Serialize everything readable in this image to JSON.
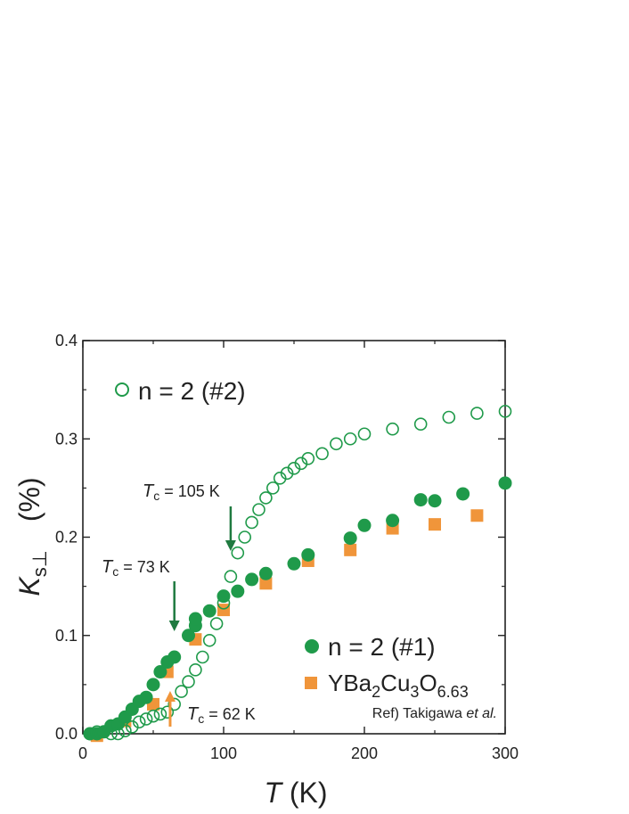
{
  "chart_data": {
    "type": "scatter",
    "xlabel": {
      "italic": "T",
      "unit": " (K)"
    },
    "ylabel": {
      "italic": "K",
      "sub": "s⊥",
      "unit": "(%)"
    },
    "xlim": [
      0,
      300
    ],
    "ylim": [
      0,
      0.4
    ],
    "x_ticks": [
      0,
      100,
      200,
      300
    ],
    "x_tick_labels": [
      "0",
      "100",
      "200",
      "300"
    ],
    "y_ticks": [
      0.0,
      0.1,
      0.2,
      0.3,
      0.4
    ],
    "y_tick_labels": [
      "0.0",
      "0.1",
      "0.2",
      "0.3",
      "0.4"
    ],
    "grid": false,
    "colors": {
      "green": "#1f9a4a",
      "orange": "#f0953a",
      "axis": "#222222"
    },
    "series": [
      {
        "name": "n = 2 (#2)",
        "marker": "open-circle",
        "color": "#1f9a4a",
        "points": [
          [
            5,
            0.0
          ],
          [
            10,
            0.002
          ],
          [
            20,
            0.0
          ],
          [
            25,
            0.0
          ],
          [
            30,
            0.003
          ],
          [
            35,
            0.007
          ],
          [
            40,
            0.012
          ],
          [
            45,
            0.015
          ],
          [
            50,
            0.018
          ],
          [
            55,
            0.02
          ],
          [
            60,
            0.022
          ],
          [
            65,
            0.03
          ],
          [
            70,
            0.043
          ],
          [
            75,
            0.053
          ],
          [
            80,
            0.065
          ],
          [
            85,
            0.078
          ],
          [
            90,
            0.095
          ],
          [
            95,
            0.112
          ],
          [
            100,
            0.133
          ],
          [
            105,
            0.16
          ],
          [
            110,
            0.184
          ],
          [
            115,
            0.2
          ],
          [
            120,
            0.215
          ],
          [
            125,
            0.228
          ],
          [
            130,
            0.24
          ],
          [
            135,
            0.25
          ],
          [
            140,
            0.26
          ],
          [
            145,
            0.265
          ],
          [
            150,
            0.27
          ],
          [
            155,
            0.275
          ],
          [
            160,
            0.28
          ],
          [
            170,
            0.285
          ],
          [
            180,
            0.295
          ],
          [
            190,
            0.3
          ],
          [
            200,
            0.305
          ],
          [
            220,
            0.31
          ],
          [
            240,
            0.315
          ],
          [
            260,
            0.322
          ],
          [
            280,
            0.326
          ],
          [
            300,
            0.328
          ]
        ]
      },
      {
        "name": "n = 2 (#1)",
        "marker": "filled-circle",
        "color": "#1f9a4a",
        "points": [
          [
            5,
            0.0
          ],
          [
            10,
            0.0
          ],
          [
            15,
            0.002
          ],
          [
            20,
            0.008
          ],
          [
            25,
            0.01
          ],
          [
            30,
            0.017
          ],
          [
            35,
            0.025
          ],
          [
            40,
            0.033
          ],
          [
            45,
            0.037
          ],
          [
            50,
            0.05
          ],
          [
            55,
            0.063
          ],
          [
            60,
            0.073
          ],
          [
            65,
            0.078
          ],
          [
            75,
            0.1
          ],
          [
            80,
            0.11
          ],
          [
            80,
            0.117
          ],
          [
            90,
            0.125
          ],
          [
            100,
            0.14
          ],
          [
            110,
            0.145
          ],
          [
            120,
            0.157
          ],
          [
            130,
            0.163
          ],
          [
            150,
            0.173
          ],
          [
            160,
            0.182
          ],
          [
            190,
            0.199
          ],
          [
            200,
            0.212
          ],
          [
            220,
            0.217
          ],
          [
            240,
            0.238
          ],
          [
            250,
            0.237
          ],
          [
            270,
            0.244
          ],
          [
            300,
            0.255
          ]
        ]
      },
      {
        "name": "YBa2Cu3O6.63",
        "marker": "square",
        "color": "#f0953a",
        "points": [
          [
            10,
            -0.002
          ],
          [
            30,
            0.013
          ],
          [
            50,
            0.03
          ],
          [
            60,
            0.063
          ],
          [
            80,
            0.096
          ],
          [
            100,
            0.126
          ],
          [
            130,
            0.153
          ],
          [
            160,
            0.176
          ],
          [
            190,
            0.187
          ],
          [
            220,
            0.209
          ],
          [
            250,
            0.213
          ],
          [
            280,
            0.222
          ]
        ]
      }
    ],
    "legend": {
      "open": "n = 2 (#2)",
      "filled": "n = 2 (#1)",
      "square": {
        "main": "YBa",
        "s1": "2",
        "mid1": "Cu",
        "s2": "3",
        "mid2": "O",
        "s3": "6.63"
      },
      "ref_prefix": "Ref) Takigawa ",
      "ref_italic": "et al."
    },
    "annotations": [
      {
        "id": "tc105",
        "label_sym": "T",
        "label_sub": "c",
        "label_rest": " = 105 K",
        "x": 105,
        "color": "#1f7a40",
        "direction": "down"
      },
      {
        "id": "tc73",
        "label_sym": "T",
        "label_sub": "c",
        "label_rest": " = 73 K",
        "x": 65,
        "color": "#1f7a40",
        "direction": "down"
      },
      {
        "id": "tc62",
        "label_sym": "T",
        "label_sub": "c",
        "label_rest": " = 62 K",
        "x": 62,
        "color": "#f0953a",
        "direction": "up"
      }
    ]
  }
}
